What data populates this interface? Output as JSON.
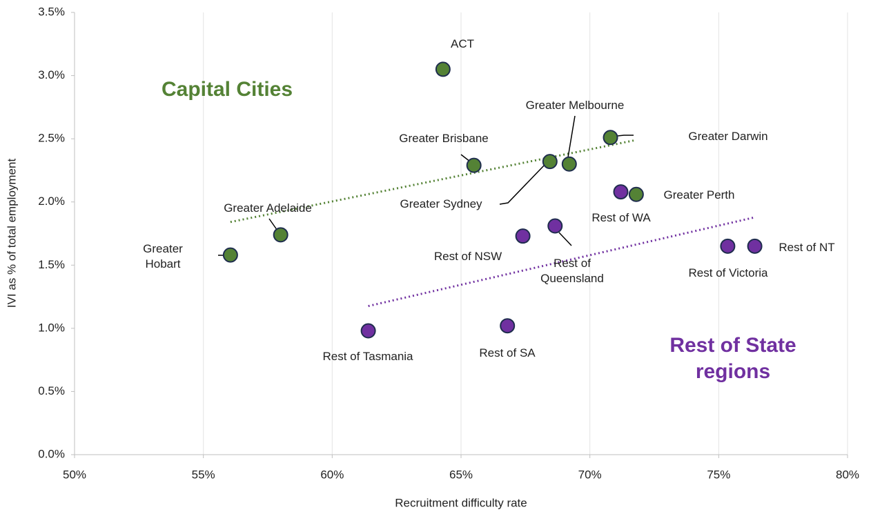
{
  "chart_data": {
    "type": "scatter",
    "x_label": "Recruitment difficulty rate",
    "y_label": "IVI as % of total employment",
    "xlim": [
      50,
      80
    ],
    "xticks": [
      {
        "value": 50,
        "label": "50%"
      },
      {
        "value": 55,
        "label": "55%"
      },
      {
        "value": 60,
        "label": "60%"
      },
      {
        "value": 65,
        "label": "65%"
      },
      {
        "value": 70,
        "label": "70%"
      },
      {
        "value": 75,
        "label": "75%"
      },
      {
        "value": 80,
        "label": "80%"
      }
    ],
    "ylim": [
      0,
      3.5
    ],
    "yticks": [
      {
        "value": 0,
        "label": "0.0%"
      },
      {
        "value": 0.5,
        "label": "0.5%"
      },
      {
        "value": 1,
        "label": "1.0%"
      },
      {
        "value": 1.5,
        "label": "1.5%"
      },
      {
        "value": 2,
        "label": "2.0%"
      },
      {
        "value": 2.5,
        "label": "2.5%"
      },
      {
        "value": 3,
        "label": "3.0%"
      },
      {
        "value": 3.5,
        "label": "3.5%"
      }
    ],
    "grid": "x",
    "trendline": "linear",
    "series": [
      {
        "name": "Capital Cities",
        "color": "#548235",
        "labels": [
          "ACT",
          "Greater Brisbane",
          "Greater Sydney",
          "Greater Melbourne",
          "Greater Darwin",
          "Greater Perth",
          "Greater Adelaide",
          "Greater Hobart"
        ],
        "x": [
          64.3,
          65.5,
          68.45,
          69.2,
          70.8,
          71.8,
          58.0,
          56.05
        ],
        "values": [
          3.05,
          2.29,
          2.32,
          2.3,
          2.51,
          2.06,
          1.74,
          1.58
        ]
      },
      {
        "name": "Rest of State regions",
        "color": "#7030a0",
        "labels": [
          "Rest of WA",
          "Rest of Queensland",
          "Rest of NSW",
          "Rest of Victoria",
          "Rest of NT",
          "Rest of Tasmania",
          "Rest of SA"
        ],
        "x": [
          71.2,
          68.65,
          67.4,
          75.35,
          76.4,
          61.4,
          66.8
        ],
        "values": [
          2.08,
          1.81,
          1.73,
          1.65,
          1.65,
          0.98,
          1.02
        ]
      }
    ]
  }
}
